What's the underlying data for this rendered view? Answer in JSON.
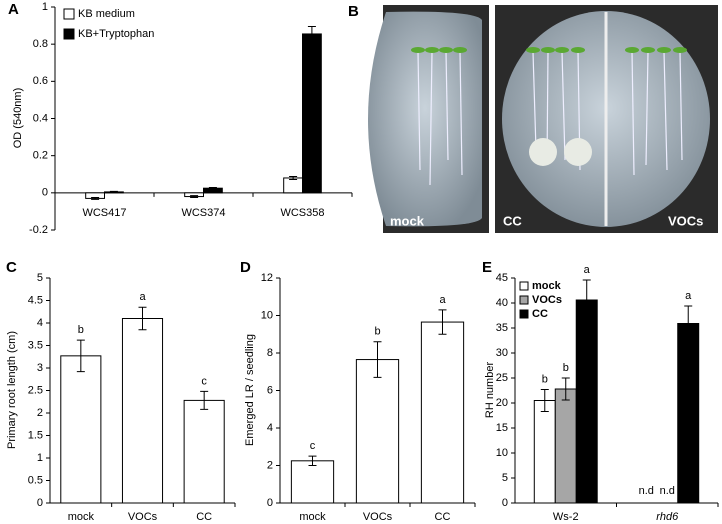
{
  "chart_data": [
    {
      "type": "bar",
      "label": "A",
      "ylabel": "OD (540nm)",
      "categories": [
        "WCS417",
        "WCS374",
        "WCS358"
      ],
      "series": [
        {
          "name": "KB medium",
          "color": "#ffffff",
          "values": [
            -0.03,
            -0.02,
            0.08
          ],
          "errors": [
            0.005,
            0.005,
            0.008
          ]
        },
        {
          "name": "KB+Tryptophan",
          "color": "#000000",
          "values": [
            0.005,
            0.025,
            0.855
          ],
          "errors": [
            0.003,
            0.004,
            0.04
          ]
        }
      ],
      "ylim": [
        -0.2,
        1
      ],
      "yticks": [
        -0.2,
        0,
        0.2,
        0.4,
        0.6,
        0.8,
        1
      ]
    },
    {
      "type": "bar",
      "label": "C",
      "ylabel": "Primary root length (cm)",
      "categories": [
        "mock",
        "VOCs",
        "CC"
      ],
      "color": "#ffffff",
      "values": [
        3.27,
        4.1,
        2.28
      ],
      "errors": [
        0.35,
        0.25,
        0.2
      ],
      "letters": [
        "b",
        "a",
        "c"
      ],
      "ylim": [
        0,
        5
      ],
      "yticks": [
        0,
        0.5,
        1,
        1.5,
        2,
        2.5,
        3,
        3.5,
        4,
        4.5,
        5
      ]
    },
    {
      "type": "bar",
      "label": "D",
      "ylabel": "Emerged LR / seedling",
      "categories": [
        "mock",
        "VOCs",
        "CC"
      ],
      "color": "#ffffff",
      "values": [
        2.25,
        7.65,
        9.65
      ],
      "errors": [
        0.25,
        0.95,
        0.65
      ],
      "letters": [
        "c",
        "b",
        "a"
      ],
      "ylim": [
        0,
        12
      ],
      "yticks": [
        0,
        2,
        4,
        6,
        8,
        10,
        12
      ]
    },
    {
      "type": "bar",
      "label": "E",
      "ylabel": "RH number",
      "categories": [
        "Ws-2",
        "rhd6"
      ],
      "series": [
        {
          "name": "mock",
          "color": "#ffffff",
          "values": [
            20.5,
            null
          ],
          "errors": [
            2.2,
            null
          ],
          "letters": [
            "b",
            null
          ],
          "value_labels": [
            null,
            "n.d"
          ]
        },
        {
          "name": "VOCs",
          "color": "#a6a6a6",
          "values": [
            22.8,
            null
          ],
          "errors": [
            2.2,
            null
          ],
          "letters": [
            "b",
            null
          ],
          "value_labels": [
            null,
            "n.d"
          ]
        },
        {
          "name": "CC",
          "color": "#000000",
          "values": [
            40.6,
            35.9
          ],
          "errors": [
            4,
            3.5
          ],
          "letters": [
            "a",
            "a"
          ]
        }
      ],
      "ylim": [
        0,
        45
      ],
      "yticks": [
        0,
        5,
        10,
        15,
        20,
        25,
        30,
        35,
        40,
        45
      ]
    }
  ],
  "photo": {
    "label": "B",
    "plates": [
      "mock",
      "CC",
      "VOCs"
    ]
  }
}
